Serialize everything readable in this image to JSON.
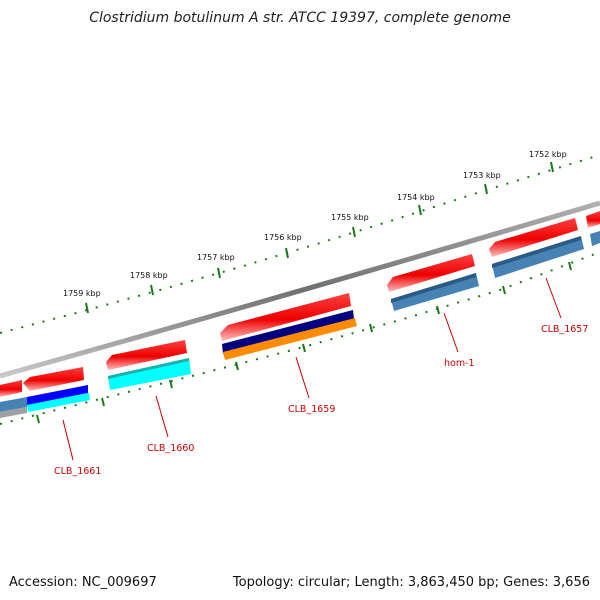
{
  "title": "Clostridium botulinum A str. ATCC 19397, complete genome",
  "footer": {
    "accession": "Accession: NC_009697",
    "topology": "Topology: circular; Length: 3,863,450 bp; Genes: 3,656"
  },
  "scale": {
    "labels": [
      "1752 kbp",
      "1753 kbp",
      "1754 kbp",
      "1755 kbp",
      "1756 kbp",
      "1757 kbp",
      "1758 kbp",
      "1759 kbp"
    ]
  },
  "genes": {
    "labels": [
      "CLB_1657",
      "hom-1",
      "CLB_1659",
      "CLB_1660",
      "CLB_1661"
    ]
  },
  "colors": {
    "backbone": "#808080",
    "feature": "#ff0000",
    "ticks": "#1a7a1a",
    "gene_label": "#cc0000",
    "track_navy": "#000080",
    "track_blue": "#0000ff",
    "track_cyan": "#00ffff",
    "track_orange": "#ff8c00",
    "track_steelblue": "#4682b4",
    "track_gray": "#a0a0a0"
  }
}
